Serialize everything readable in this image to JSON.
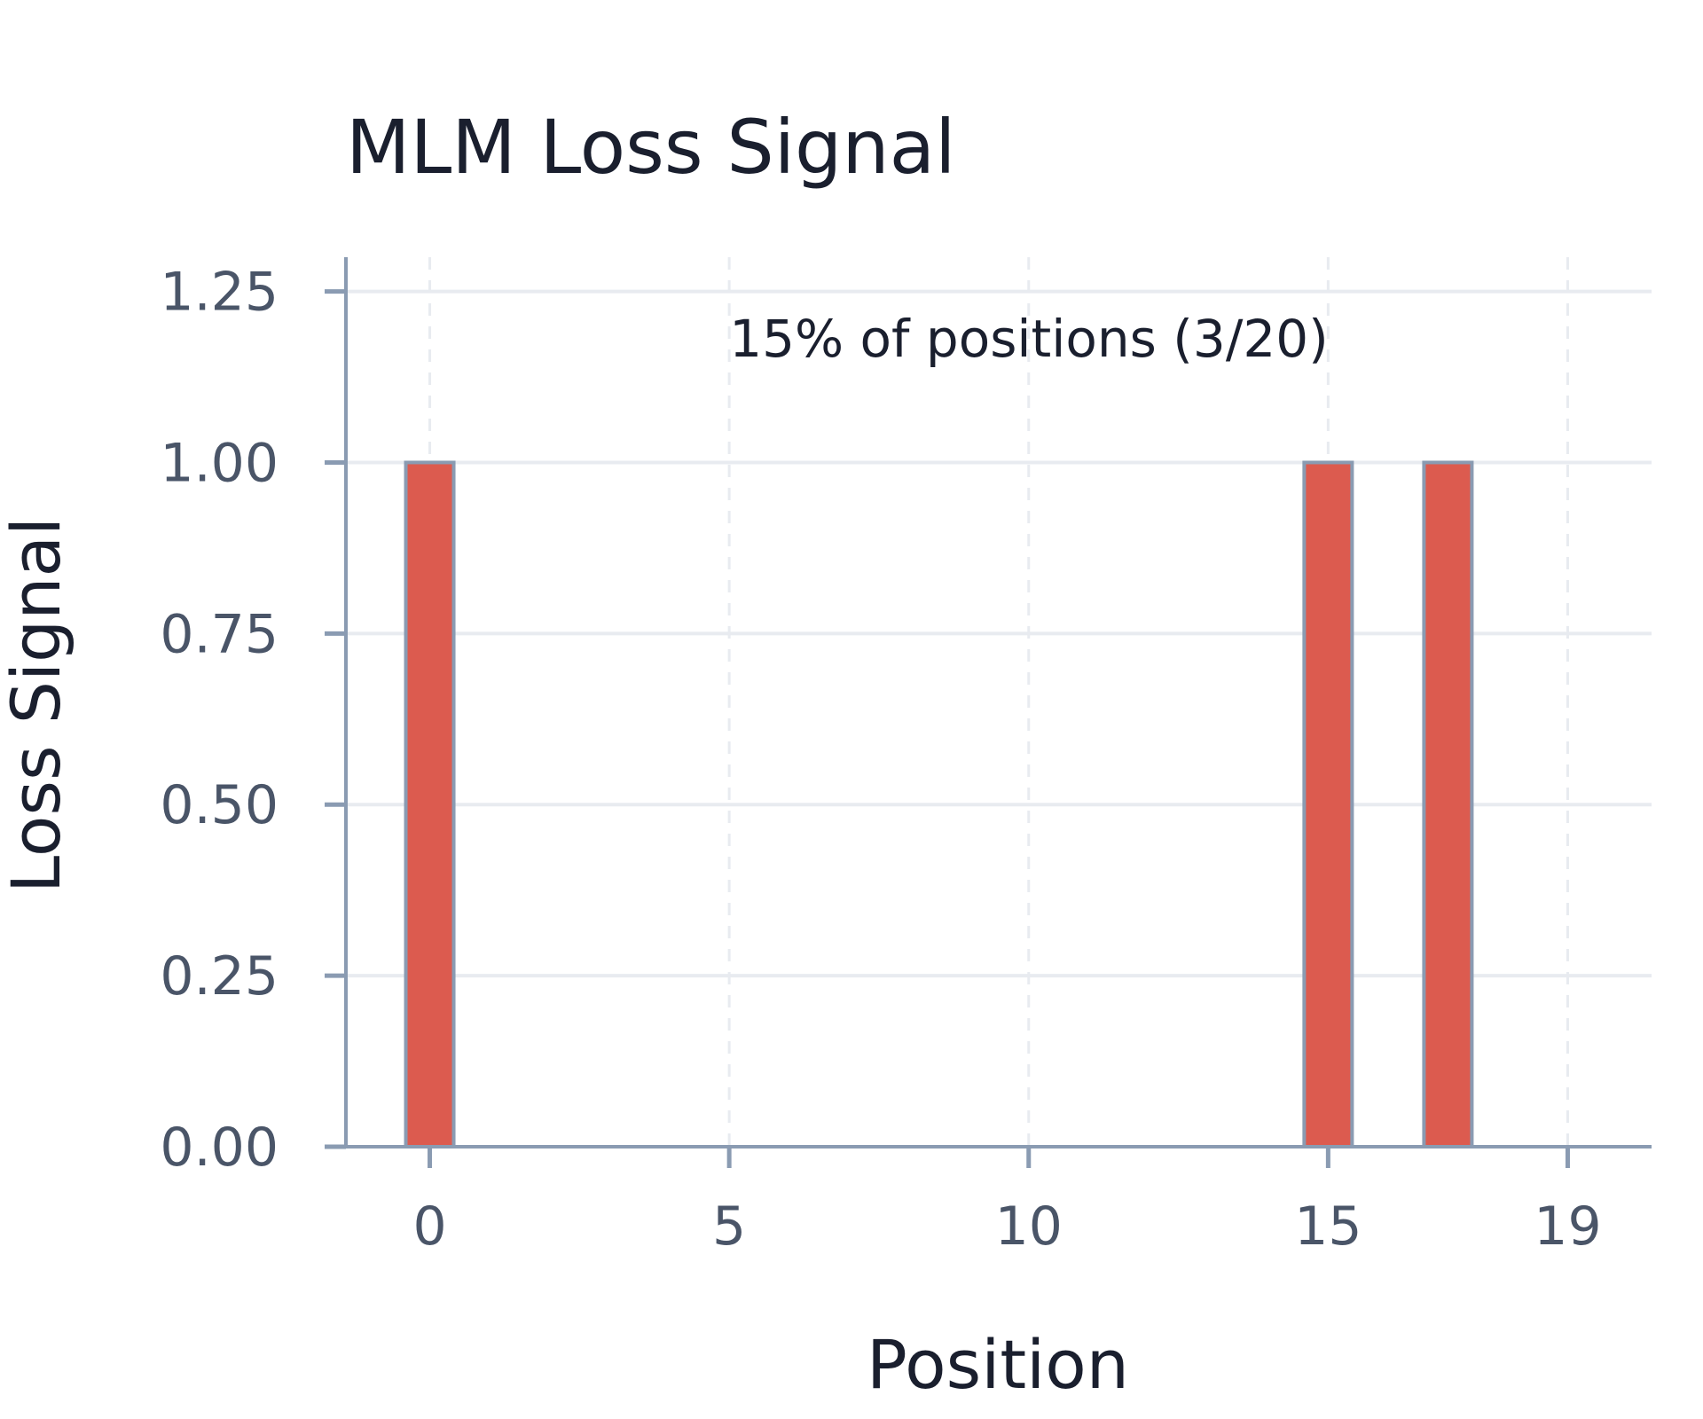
{
  "chart_data": {
    "type": "bar",
    "title": "MLM Loss Signal",
    "xlabel": "Position",
    "ylabel": "Loss Signal",
    "annotation": "15% of positions (3/20)",
    "x": [
      0,
      1,
      2,
      3,
      4,
      5,
      6,
      7,
      8,
      9,
      10,
      11,
      12,
      13,
      14,
      15,
      16,
      17,
      18,
      19
    ],
    "values": [
      1,
      0,
      0,
      0,
      0,
      0,
      0,
      0,
      0,
      0,
      0,
      0,
      0,
      0,
      0,
      1,
      0,
      1,
      0,
      0
    ],
    "xticks": [
      0,
      5,
      10,
      15,
      19
    ],
    "xtick_labels": [
      "0",
      "5",
      "10",
      "15",
      "19"
    ],
    "yticks": [
      0,
      0.25,
      0.5,
      0.75,
      1,
      1.25
    ],
    "ytick_labels": [
      "0.00",
      "0.25",
      "0.50",
      "0.75",
      "1.00",
      "1.25"
    ],
    "xlim": [
      -1.4,
      20.4
    ],
    "ylim": [
      0,
      1.3
    ],
    "grid": true,
    "colors": {
      "bar": "#dc5b4f",
      "bar_edge": "#8a9bb2",
      "axis": "#8a9bb2",
      "grid": "#e8ebf0",
      "text": "#1a1f2e",
      "tick_text": "#4a5568"
    }
  }
}
